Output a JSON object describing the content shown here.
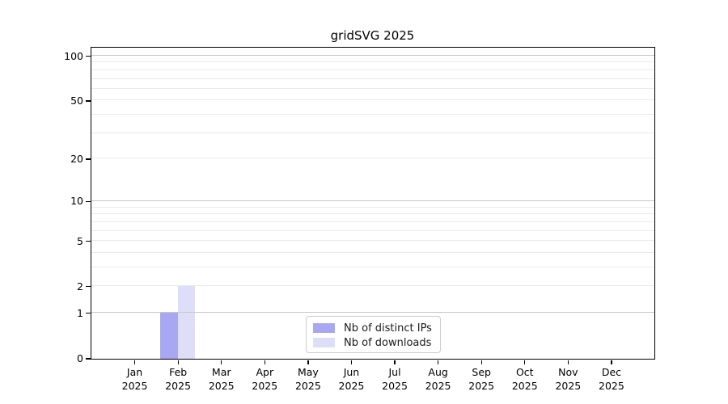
{
  "title": "gridSVG 2025",
  "chart_data": {
    "type": "bar",
    "title": "gridSVG 2025",
    "x_categories": [
      {
        "month": "Jan",
        "year": "2025"
      },
      {
        "month": "Feb",
        "year": "2025"
      },
      {
        "month": "Mar",
        "year": "2025"
      },
      {
        "month": "Apr",
        "year": "2025"
      },
      {
        "month": "May",
        "year": "2025"
      },
      {
        "month": "Jun",
        "year": "2025"
      },
      {
        "month": "Jul",
        "year": "2025"
      },
      {
        "month": "Aug",
        "year": "2025"
      },
      {
        "month": "Sep",
        "year": "2025"
      },
      {
        "month": "Oct",
        "year": "2025"
      },
      {
        "month": "Nov",
        "year": "2025"
      },
      {
        "month": "Dec",
        "year": "2025"
      }
    ],
    "series": [
      {
        "name": "Nb of distinct IPs",
        "color": "#a8a8f2",
        "values": [
          0,
          1,
          0,
          0,
          0,
          0,
          0,
          0,
          0,
          0,
          0,
          0
        ]
      },
      {
        "name": "Nb of downloads",
        "color": "#dedef8",
        "values": [
          0,
          2,
          0,
          0,
          0,
          0,
          0,
          0,
          0,
          0,
          0,
          0
        ]
      }
    ],
    "y_scale": "log1p",
    "y_axis_ticks": [
      0,
      1,
      2,
      5,
      10,
      20,
      50,
      100
    ],
    "grid_values": [
      1,
      2,
      3,
      4,
      5,
      6,
      7,
      8,
      9,
      10,
      20,
      30,
      40,
      50,
      60,
      70,
      80,
      90,
      100
    ],
    "major_grid_values": [
      1,
      10,
      100
    ],
    "ylim": [
      0,
      113
    ],
    "grid": "on",
    "legend_position": "bottom-center"
  },
  "colors": {
    "bar_distinct_ips": "#a8a8f2",
    "bar_downloads": "#dedef8",
    "major_grid": "#c7c7c7",
    "minor_grid": "#eaeaea",
    "axis": "#000000",
    "legend_border": "#cccccc",
    "text": "#1a1a1a"
  }
}
